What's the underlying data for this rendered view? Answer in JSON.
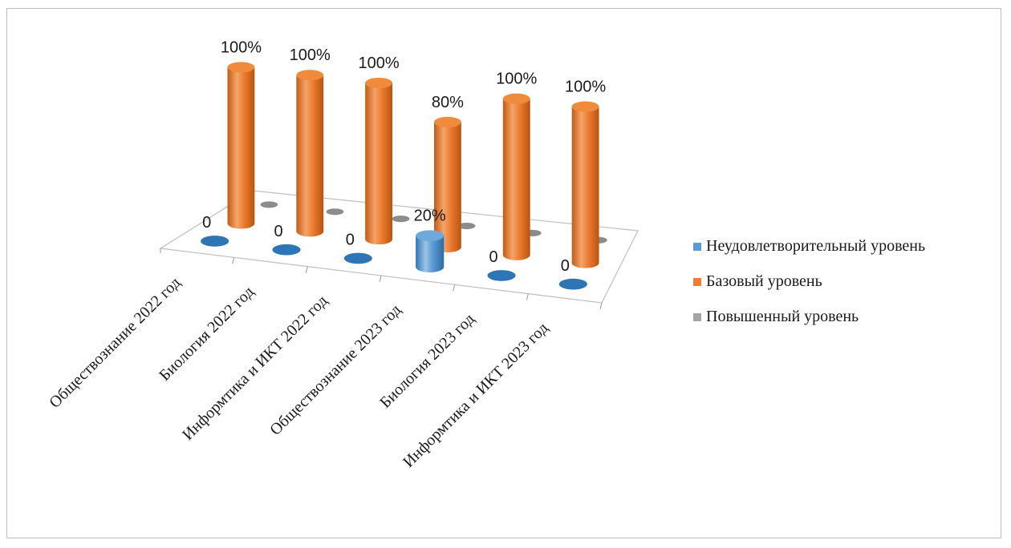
{
  "chart_data": {
    "type": "bar",
    "categories": [
      "Обществознание 2022 год",
      "Биология 2022 год",
      "Информтика и ИКТ 2022 год",
      "Обществознание 2023 год",
      "Биология 2023 год",
      "Информтика и ИКТ 2023 год"
    ],
    "series": [
      {
        "name": "Неудовлетворительный уровень",
        "values": [
          0,
          0,
          0,
          20,
          0,
          0
        ],
        "labels": [
          "0",
          "0",
          "0",
          "20%",
          "0",
          "0"
        ],
        "color": "#5b9bd5"
      },
      {
        "name": "Базовый уровень",
        "values": [
          100,
          100,
          100,
          80,
          100,
          100
        ],
        "labels": [
          "100%",
          "100%",
          "100%",
          "80%",
          "100%",
          "100%"
        ],
        "color": "#ed7d31"
      },
      {
        "name": "Повышенный уровень",
        "values": [
          0,
          0,
          0,
          0,
          0,
          0
        ],
        "labels": [],
        "color": "#a5a5a5"
      }
    ],
    "ylim": [
      0,
      100
    ],
    "legend_position": "right",
    "grid": false
  }
}
